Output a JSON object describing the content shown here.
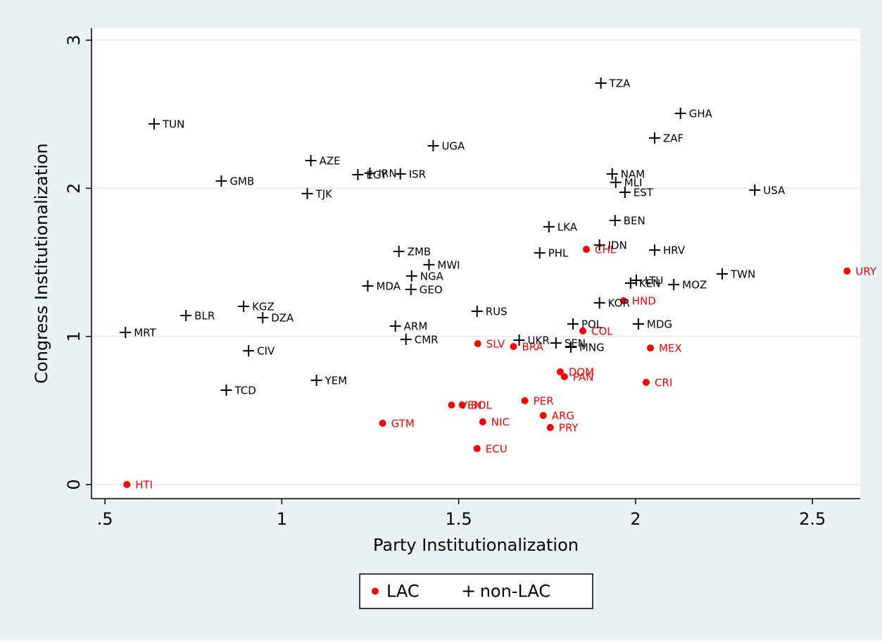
{
  "chart_data": {
    "type": "scatter",
    "x_label": "Party Institutionalization",
    "y_label": "Congress Institutionalization",
    "xlim": [
      0.462,
      2.635
    ],
    "ylim": [
      -0.095,
      3.081
    ],
    "xticks": [
      {
        "value": 0.5,
        "label": ".5"
      },
      1,
      1.5,
      2,
      2.5
    ],
    "yticks": [
      0,
      1,
      2,
      3
    ],
    "grid": true,
    "legend": "bottom",
    "series": [
      {
        "name": "LAC",
        "color": "#ff0000",
        "marker": "circle",
        "labels": [
          "CHL",
          "URY",
          "HND",
          "COL",
          "MEX",
          "SLV",
          "BRA",
          "DOM",
          "PAN",
          "CRI",
          "PER",
          "VEN",
          "BOL",
          "ARG",
          "NIC",
          "PRY",
          "GTM",
          "ECU",
          "HTI"
        ],
        "x": [
          1.861,
          2.598,
          1.966,
          1.851,
          2.042,
          1.554,
          1.655,
          1.787,
          1.799,
          2.03,
          1.687,
          1.48,
          1.51,
          1.739,
          1.568,
          1.759,
          1.285,
          1.552,
          0.562
        ],
        "values": [
          1.588,
          1.441,
          1.241,
          1.037,
          0.922,
          0.951,
          0.932,
          0.761,
          0.728,
          0.69,
          0.566,
          0.537,
          0.537,
          0.466,
          0.423,
          0.385,
          0.414,
          0.243,
          0.0
        ]
      },
      {
        "name": "non-LAC",
        "color": "#000000",
        "marker": "plus",
        "labels": [
          "TUN",
          "GMB",
          "AZE",
          "EGY",
          "IRN",
          "ISR",
          "UGA",
          "TJK",
          "TZA",
          "GHA",
          "ZAF",
          "NAM",
          "MLI",
          "EST",
          "USA",
          "BEN",
          "LKA",
          "IDN",
          "HRV",
          "PHL",
          "ZMB",
          "MWI",
          "NGA",
          "MDA",
          "GEO",
          "TWN",
          "LTU",
          "KEN",
          "MOZ",
          "KOR",
          "BLR",
          "KGZ",
          "DZA",
          "MRT",
          "RUS",
          "ARM",
          "CMR",
          "CIV",
          "UKR",
          "SEN",
          "MNG",
          "POL",
          "MDG",
          "TCD",
          "YEM"
        ],
        "x": [
          0.639,
          0.829,
          1.082,
          1.215,
          1.249,
          1.335,
          1.428,
          1.072,
          1.902,
          2.127,
          2.054,
          1.934,
          1.944,
          1.97,
          2.337,
          1.942,
          1.755,
          1.898,
          2.054,
          1.729,
          1.331,
          1.416,
          1.367,
          1.243,
          1.365,
          2.245,
          2.002,
          1.986,
          2.108,
          1.898,
          0.729,
          0.892,
          0.946,
          0.558,
          1.552,
          1.321,
          1.351,
          0.906,
          1.671,
          1.775,
          1.817,
          1.823,
          2.008,
          0.843,
          1.098
        ],
        "values": [
          2.435,
          2.049,
          2.187,
          2.092,
          2.102,
          2.097,
          2.287,
          1.964,
          2.71,
          2.506,
          2.34,
          2.097,
          2.04,
          1.973,
          1.988,
          1.783,
          1.74,
          1.617,
          1.583,
          1.564,
          1.574,
          1.484,
          1.408,
          1.341,
          1.317,
          1.422,
          1.379,
          1.36,
          1.35,
          1.227,
          1.141,
          1.203,
          1.127,
          1.027,
          1.17,
          1.07,
          0.98,
          0.903,
          0.975,
          0.956,
          0.927,
          1.084,
          1.084,
          0.637,
          0.704
        ]
      }
    ]
  }
}
